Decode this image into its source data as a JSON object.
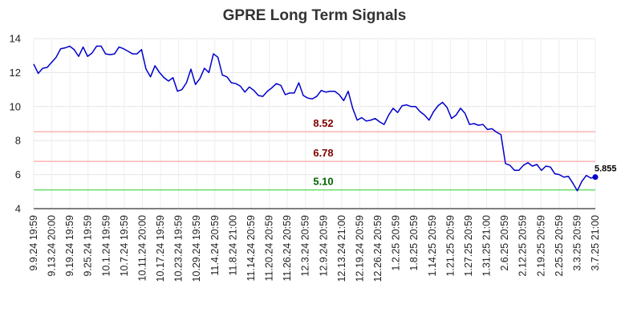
{
  "chart_data": {
    "type": "line",
    "title": "GPRE Long Term Signals",
    "xlabel": "",
    "ylabel": "",
    "ylim": [
      4,
      14
    ],
    "yticks": [
      4,
      6,
      8,
      10,
      12,
      14
    ],
    "grid": true,
    "x_tick_labels": [
      "9.9.24 19:59",
      "9.13.24 20:00",
      "9.19.24 19:59",
      "9.25.24 19:59",
      "10.1.24 19:59",
      "10.7.24 19:59",
      "10.11.24 20:00",
      "10.17.24 19:59",
      "10.23.24 19:59",
      "10.29.24 19:59",
      "11.4.24 20:59",
      "11.8.24 21:00",
      "11.14.24 20:59",
      "11.20.24 20:59",
      "11.26.24 20:59",
      "12.3.24 20:59",
      "12.9.24 20:59",
      "12.13.24 21:00",
      "12.19.24 20:59",
      "12.26.24 20:59",
      "1.2.25 20:59",
      "1.8.25 20:59",
      "1.14.25 20:59",
      "1.21.25 20:59",
      "1.27.25 20:59",
      "1.31.25 21:00",
      "2.6.25 20:59",
      "2.12.25 20:59",
      "2.19.25 20:59",
      "2.25.25 20:59",
      "3.3.25 20:59",
      "3.7.25 21:00"
    ],
    "series": [
      {
        "color": "#0000cc",
        "values": [
          12.5,
          11.95,
          12.25,
          12.3,
          12.6,
          12.9,
          13.4,
          13.45,
          13.55,
          13.35,
          12.95,
          13.5,
          12.95,
          13.15,
          13.55,
          13.55,
          13.1,
          13.05,
          13.1,
          13.5,
          13.4,
          13.25,
          13.1,
          13.1,
          13.35,
          12.2,
          11.75,
          12.4,
          12.0,
          11.7,
          11.5,
          11.7,
          10.9,
          11.0,
          11.4,
          12.2,
          11.3,
          11.65,
          12.25,
          12.0,
          13.1,
          12.9,
          11.85,
          11.75,
          11.4,
          11.35,
          11.2,
          10.85,
          11.15,
          10.95,
          10.65,
          10.6,
          10.9,
          11.1,
          11.35,
          11.25,
          10.7,
          10.8,
          10.8,
          11.4,
          10.65,
          10.5,
          10.45,
          10.6,
          10.95,
          10.85,
          10.9,
          10.9,
          10.7,
          10.35,
          10.9,
          9.9,
          9.2,
          9.35,
          9.15,
          9.2,
          9.3,
          9.1,
          8.95,
          9.5,
          9.9,
          9.65,
          10.05,
          10.1,
          10.0,
          10.0,
          9.7,
          9.5,
          9.2,
          9.7,
          10.05,
          10.25,
          9.95,
          9.3,
          9.5,
          9.9,
          9.6,
          8.95,
          9.0,
          8.9,
          8.95,
          8.65,
          8.7,
          8.5,
          8.35,
          6.65,
          6.55,
          6.25,
          6.25,
          6.55,
          6.7,
          6.5,
          6.6,
          6.25,
          6.5,
          6.45,
          6.05,
          6.0,
          5.85,
          5.9,
          5.5,
          5.05,
          5.6,
          5.95,
          5.8,
          5.855
        ]
      }
    ],
    "levels": [
      {
        "value": 8.52,
        "label": "8.52",
        "line_color": "#ffb3b3",
        "text_color": "#800000"
      },
      {
        "value": 6.78,
        "label": "6.78",
        "line_color": "#ffb3b3",
        "text_color": "#800000"
      },
      {
        "value": 5.1,
        "label": "5.10",
        "line_color": "#66dd66",
        "text_color": "#006600"
      }
    ],
    "last_value": 5.855,
    "last_label": "5.855"
  }
}
